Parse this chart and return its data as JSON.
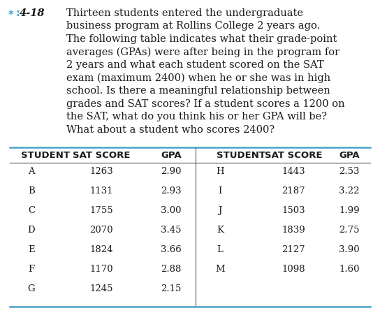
{
  "problem_number": "4-18",
  "icon_color": "#4aa3c8",
  "bg_color": "#ffffff",
  "text_color": "#1a1a1a",
  "para_lines": [
    "Thirteen students entered the undergraduate",
    "business program at Rollins College 2 years ago.",
    "The following table indicates what their grade-point",
    "averages (GPAs) were after being in the program for",
    "2 years and what each student scored on the SAT",
    "exam (maximum 2400) when he or she was in high",
    "school. Is there a meaningful relationship between",
    "grades and SAT scores? If a student scores a 1200 on",
    "the SAT, what do you think his or her GPA will be?",
    "What about a student who scores 2400?"
  ],
  "header_left": [
    "STUDENT",
    "SAT SCORE",
    "GPA"
  ],
  "header_right": [
    "STUDENT",
    "SAT SCORE",
    "GPA"
  ],
  "left_students": [
    "A",
    "B",
    "C",
    "D",
    "E",
    "F",
    "G"
  ],
  "left_sat": [
    1263,
    1131,
    1755,
    2070,
    1824,
    1170,
    1245
  ],
  "left_gpa": [
    2.9,
    2.93,
    3.0,
    3.45,
    3.66,
    2.88,
    2.15
  ],
  "right_students": [
    "H",
    "I",
    "J",
    "K",
    "L",
    "M"
  ],
  "right_sat": [
    1443,
    2187,
    1503,
    1839,
    2127,
    1098
  ],
  "right_gpa": [
    2.53,
    3.22,
    1.99,
    2.75,
    3.9,
    1.6
  ],
  "font_size_para": 10.5,
  "font_size_header": 9.5,
  "font_size_table": 9.5,
  "font_size_label": 10.5,
  "line_color": "#4aa3c8",
  "table_line_color": "#555555"
}
